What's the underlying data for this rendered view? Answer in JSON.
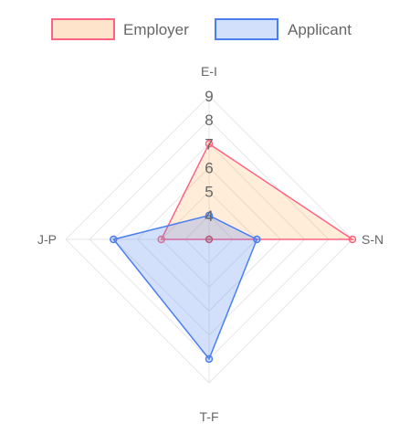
{
  "chart_data": {
    "type": "radar",
    "axes": [
      "E-I",
      "S-N",
      "T-F",
      "J-P"
    ],
    "r_ticks": [
      "4",
      "5",
      "6",
      "7",
      "8",
      "9"
    ],
    "r_min": 3,
    "r_max": 9,
    "grid": true,
    "legend_position": "top",
    "series": [
      {
        "name": "Employer",
        "values": [
          7,
          9,
          3,
          5
        ],
        "border_color": "#ff6384",
        "fill_color": "rgba(255,159,64,0.2)",
        "legend_fill": "#ffe4cc"
      },
      {
        "name": "Applicant",
        "values": [
          4,
          5,
          8,
          7
        ],
        "border_color": "#4a7ef0",
        "fill_color": "rgba(80,130,240,0.25)",
        "legend_fill": "#d2e0fc"
      }
    ]
  }
}
